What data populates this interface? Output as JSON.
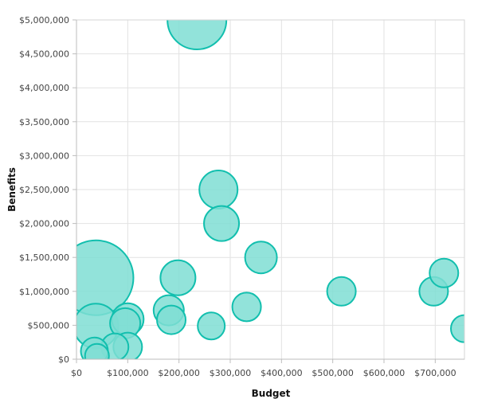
{
  "chart_data": {
    "type": "scatter",
    "variant": "bubble",
    "title": "",
    "xlabel": "Budget",
    "ylabel": "Benefits",
    "xlim": [
      0,
      757000
    ],
    "ylim": [
      0,
      5000000
    ],
    "x_ticks": [
      0,
      100000,
      200000,
      300000,
      400000,
      500000,
      600000,
      700000
    ],
    "x_tick_labels": [
      "$0",
      "$100,000",
      "$200,000",
      "$300,000",
      "$400,000",
      "$500,000",
      "$600,000",
      "$700,000"
    ],
    "y_ticks": [
      0,
      500000,
      1000000,
      1500000,
      2000000,
      2500000,
      3000000,
      3500000,
      4000000,
      4500000,
      5000000
    ],
    "y_tick_labels": [
      "$0",
      "$500,000",
      "$1,000,000",
      "$1,500,000",
      "$2,000,000",
      "$2,500,000",
      "$3,000,000",
      "$3,500,000",
      "$4,000,000",
      "$4,500,000",
      "$5,000,000"
    ],
    "grid": true,
    "legend": "none",
    "color_fill": "#7fded4",
    "color_stroke": "#12bfae",
    "series": [
      {
        "points": [
          {
            "x": 235000,
            "y": 5000000,
            "r": 37
          },
          {
            "x": 38000,
            "y": 1200000,
            "r": 47
          },
          {
            "x": 277000,
            "y": 2500000,
            "r": 24
          },
          {
            "x": 283000,
            "y": 2000000,
            "r": 22
          },
          {
            "x": 360000,
            "y": 1500000,
            "r": 20
          },
          {
            "x": 198000,
            "y": 1200000,
            "r": 22
          },
          {
            "x": 517000,
            "y": 1000000,
            "r": 18
          },
          {
            "x": 697000,
            "y": 1000000,
            "r": 18
          },
          {
            "x": 717000,
            "y": 1270000,
            "r": 18
          },
          {
            "x": 332000,
            "y": 770000,
            "r": 18
          },
          {
            "x": 180000,
            "y": 720000,
            "r": 19
          },
          {
            "x": 185000,
            "y": 580000,
            "r": 18
          },
          {
            "x": 263000,
            "y": 490000,
            "r": 17
          },
          {
            "x": 100000,
            "y": 590000,
            "r": 20
          },
          {
            "x": 95000,
            "y": 530000,
            "r": 19
          },
          {
            "x": 38000,
            "y": 490000,
            "r": 28
          },
          {
            "x": 100000,
            "y": 180000,
            "r": 18
          },
          {
            "x": 75000,
            "y": 180000,
            "r": 17
          },
          {
            "x": 35000,
            "y": 120000,
            "r": 17
          },
          {
            "x": 40000,
            "y": 50000,
            "r": 15
          },
          {
            "x": 757000,
            "y": 450000,
            "r": 17
          }
        ]
      }
    ]
  }
}
